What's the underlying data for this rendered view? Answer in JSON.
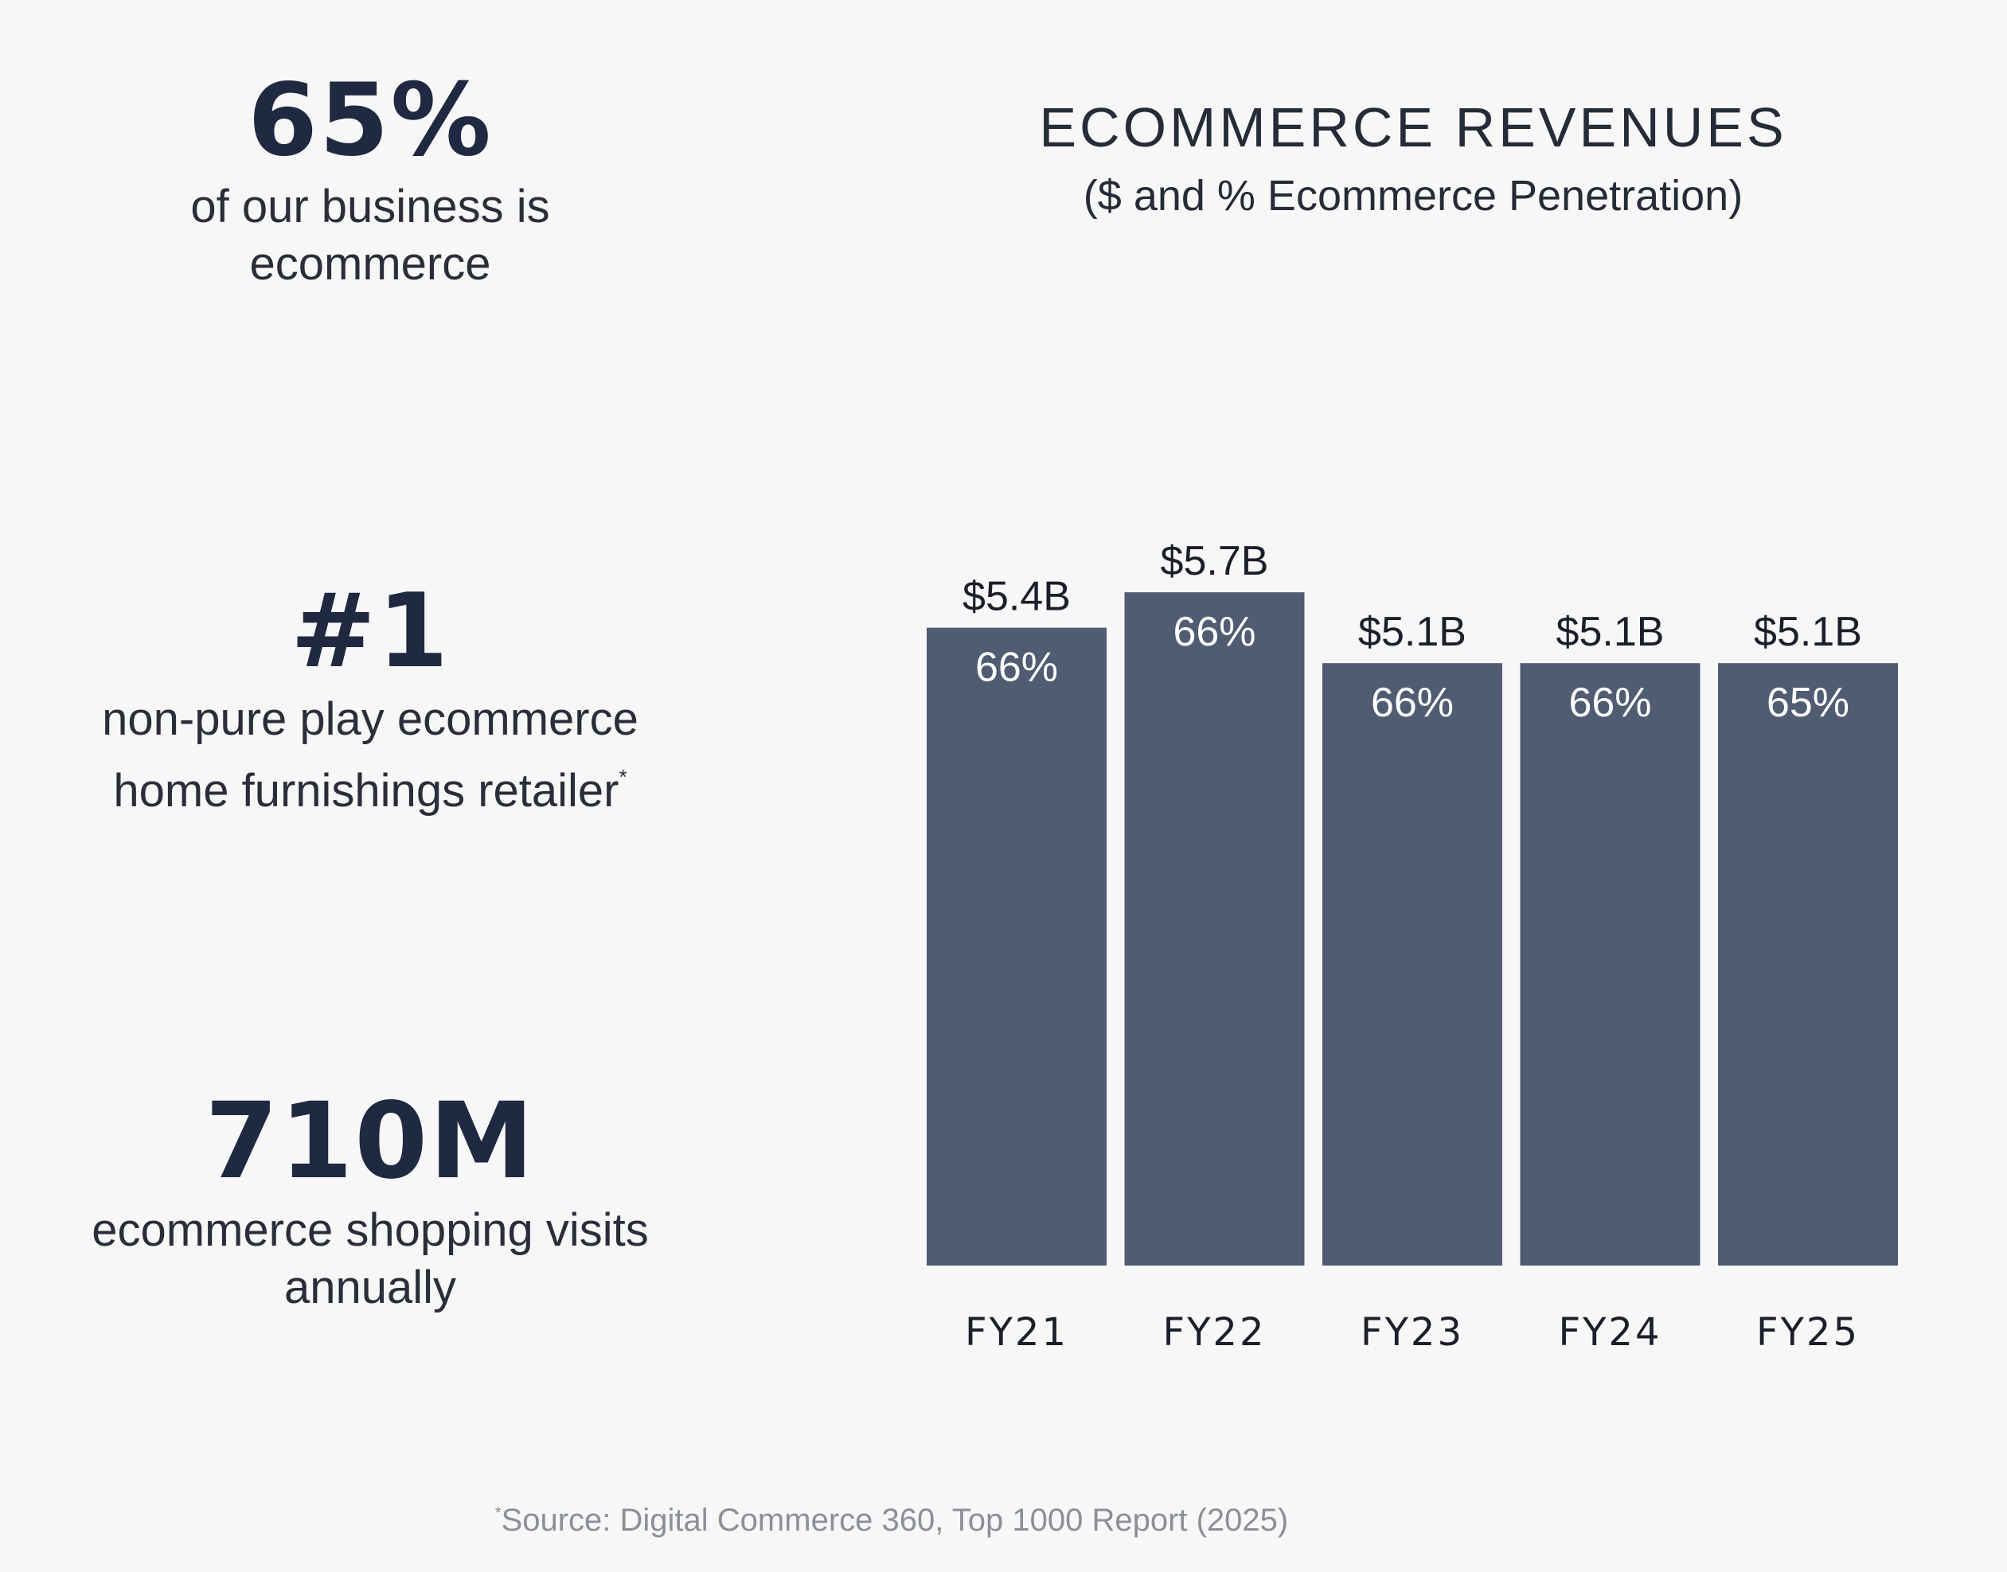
{
  "stats": [
    {
      "value": "65%",
      "lines": [
        "of our business is",
        "ecommerce"
      ]
    },
    {
      "value": "#1",
      "lines": [
        "non-pure play ecommerce",
        "home furnishings retailer"
      ],
      "footnote_mark": "*"
    },
    {
      "value": "710M",
      "lines": [
        "ecommerce shopping visits",
        "annually"
      ]
    }
  ],
  "footnote": {
    "mark": "*",
    "text": "Source: Digital Commerce 360, Top 1000 Report  (2025)"
  },
  "colors": {
    "bar": "#505c72",
    "background": "#f7f7f7",
    "text": "#23283a",
    "footnote": "#8b8f98"
  },
  "chart_data": {
    "type": "bar",
    "title": "ECOMMERCE REVENUES",
    "subtitle": "($ and % Ecommerce Penetration)",
    "xlabel": "",
    "ylabel": "",
    "categories": [
      "FY21",
      "FY22",
      "FY23",
      "FY24",
      "FY25"
    ],
    "values": [
      5.4,
      5.7,
      5.1,
      5.1,
      5.1
    ],
    "value_labels": [
      "$5.4B",
      "$5.7B",
      "$5.1B",
      "$5.1B",
      "$5.1B"
    ],
    "penetration_labels": [
      "66%",
      "66%",
      "66%",
      "66%",
      "65%"
    ],
    "grid": false,
    "legend": "none"
  }
}
